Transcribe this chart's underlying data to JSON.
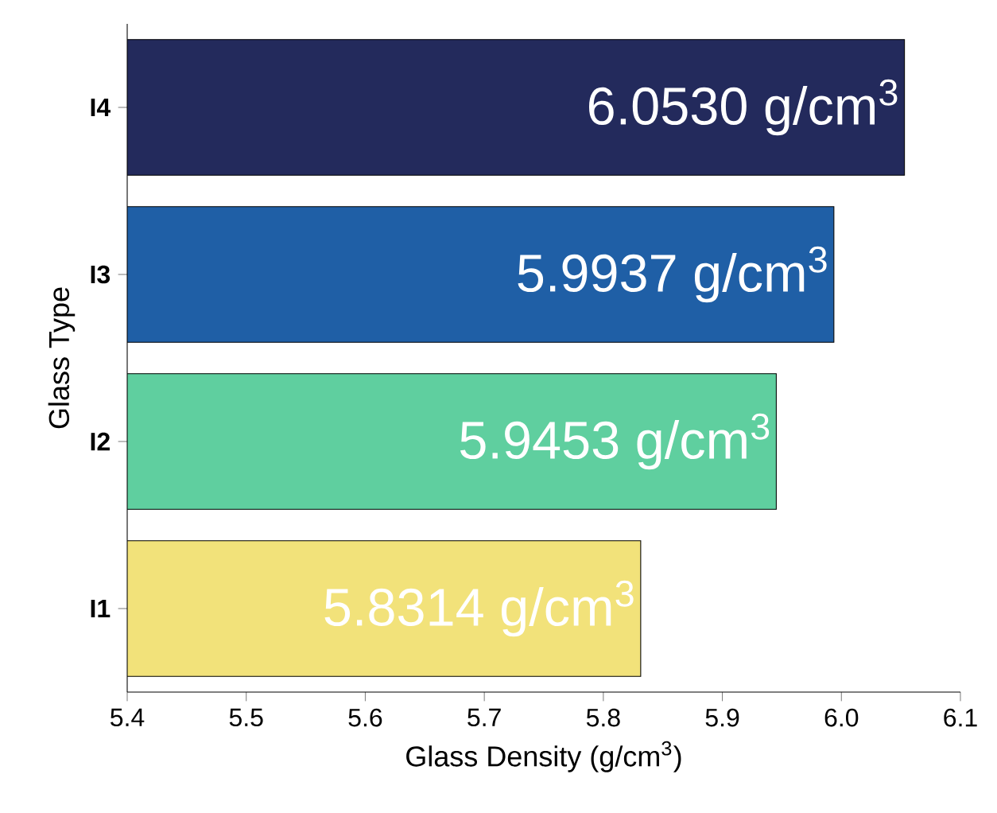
{
  "chart_data": {
    "type": "bar",
    "orientation": "horizontal",
    "categories": [
      "I4",
      "I3",
      "I2",
      "I1"
    ],
    "values": [
      6.053,
      5.9937,
      5.9453,
      5.8314
    ],
    "value_labels": [
      "6.0530 g/cm$^{3}$",
      "5.9937 g/cm$^{3}$",
      "5.9453 g/cm$^{3}$",
      "5.8314 g/cm$^{3}$"
    ],
    "colors": [
      "#232a5c",
      "#1f5fa6",
      "#5fcf9f",
      "#f2e27a"
    ],
    "xlabel": "Glass Density (g/cm$^{3}$)",
    "ylabel": "Glass Type",
    "xlim": [
      5.4,
      6.1
    ],
    "xticks": [
      5.4,
      5.5,
      5.6,
      5.7,
      5.8,
      5.9,
      {
        "value": 6.0,
        "label": "6.0"
      },
      6.1
    ]
  }
}
